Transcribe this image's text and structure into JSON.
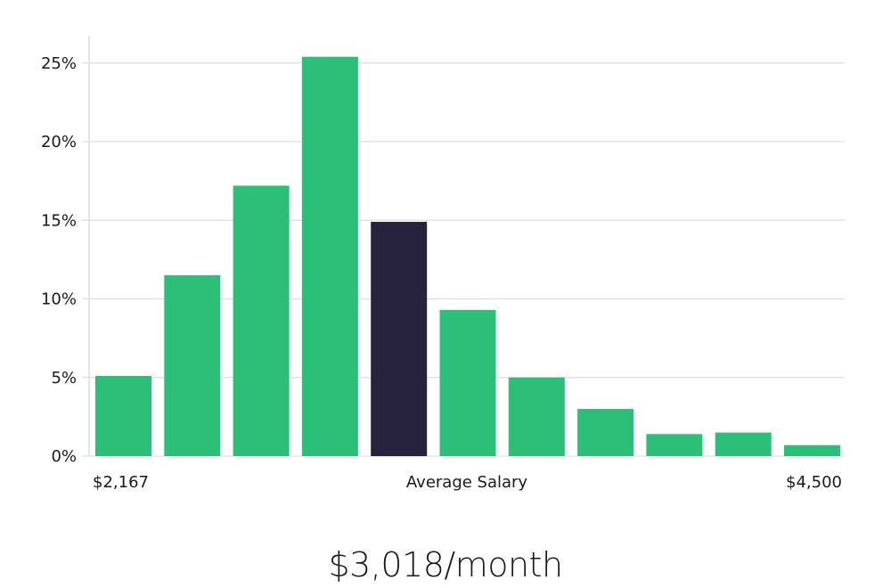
{
  "chart_data": {
    "type": "bar",
    "title": "",
    "xlabel": "Average Salary",
    "ylabel": "",
    "x_range_labels": {
      "min": "$2,167",
      "max": "$4,500"
    },
    "values": [
      5.1,
      11.5,
      17.2,
      25.4,
      14.9,
      9.3,
      5.0,
      3.0,
      1.4,
      1.5,
      0.7
    ],
    "highlight_index": 4,
    "ylim": [
      0,
      26.5
    ],
    "yticks": [
      0,
      5,
      10,
      15,
      20,
      25
    ],
    "ytick_labels": [
      "0%",
      "5%",
      "10%",
      "15%",
      "20%",
      "25%"
    ],
    "grid": true,
    "colors": {
      "bar": "#2bbf77",
      "highlight": "#27233f",
      "grid": "#dddddd"
    }
  },
  "summary": {
    "average_salary": "$3,018/month"
  }
}
